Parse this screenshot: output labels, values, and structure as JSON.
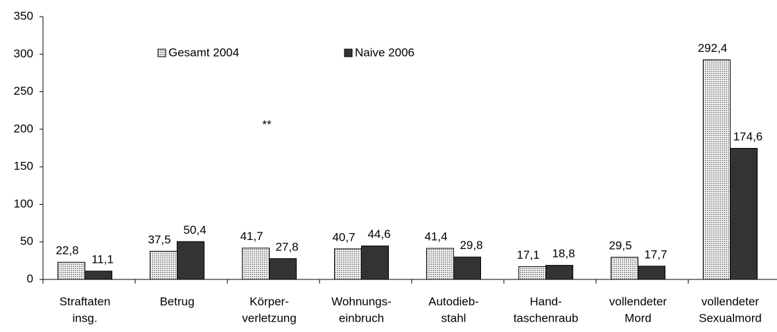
{
  "chart_data": {
    "type": "bar",
    "categories": [
      [
        "Straftaten",
        "insg."
      ],
      [
        "Betrug"
      ],
      [
        "Körper-",
        "verletzung"
      ],
      [
        "Wohnungs-",
        "einbruch"
      ],
      [
        "Autodieb-",
        "stahl"
      ],
      [
        "Hand-",
        "taschenraub"
      ],
      [
        "vollendeter",
        "Mord"
      ],
      [
        "vollendeter",
        "Sexualmord"
      ]
    ],
    "series": [
      {
        "name": "Gesamt 2004",
        "color": "#d4d4d4",
        "values": [
          22.8,
          37.5,
          41.7,
          40.7,
          41.4,
          17.1,
          29.5,
          292.4
        ],
        "value_labels": [
          "22,8",
          "37,5",
          "41,7",
          "40,7",
          "41,4",
          "17,1",
          "29,5",
          "292,4"
        ]
      },
      {
        "name": "Naive 2006",
        "color": "#333333",
        "values": [
          11.1,
          50.4,
          27.8,
          44.6,
          29.8,
          18.8,
          17.7,
          174.6
        ],
        "value_labels": [
          "11,1",
          "50,4",
          "27,8",
          "44,6",
          "29,8",
          "18,8",
          "17,7",
          "174,6"
        ]
      }
    ],
    "annotation": "**",
    "ylim": [
      0,
      350
    ],
    "yticks": [
      0,
      50,
      100,
      150,
      200,
      250,
      300,
      350
    ],
    "grid": false
  }
}
